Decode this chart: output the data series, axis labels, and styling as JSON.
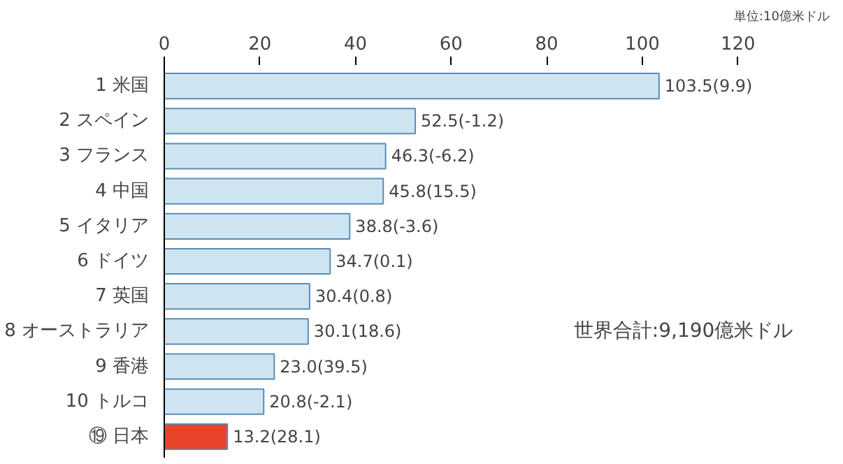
{
  "chart_data": {
    "type": "bar",
    "orientation": "horizontal",
    "categories": [
      "1 米国",
      "2 スペイン",
      "3 フランス",
      "4 中国",
      "5 イタリア",
      "6 ドイツ",
      "7 英国",
      "8 オーストラリア",
      "9 香港",
      "10 トルコ",
      "⑲ 日本"
    ],
    "values": [
      103.5,
      52.5,
      46.3,
      45.8,
      38.8,
      34.7,
      30.4,
      30.1,
      23.0,
      20.8,
      13.2
    ],
    "colors": [
      "#cfe4f1",
      "#cfe4f1",
      "#cfe4f1",
      "#cfe4f1",
      "#cfe4f1",
      "#cfe4f1",
      "#cfe4f1",
      "#cfe4f1",
      "#cfe4f1",
      "#cfe4f1",
      "#e8442c"
    ],
    "value_labels": [
      "103.5(9.9)",
      "52.5(-1.2)",
      "46.3(-6.2)",
      "45.8(15.5)",
      "38.8(-3.6)",
      "34.7(0.1)",
      "30.4(0.8)",
      "30.1(18.6)",
      "23.0(39.5)",
      "20.8(-2.1)",
      "13.2(28.1)"
    ],
    "xlim": [
      0,
      120
    ],
    "xticks": [
      0,
      20,
      40,
      60,
      80,
      100,
      120
    ],
    "grid": false,
    "annotations": [
      "単位:10億米ドル",
      "世界合計:9,190億米ドル"
    ]
  }
}
